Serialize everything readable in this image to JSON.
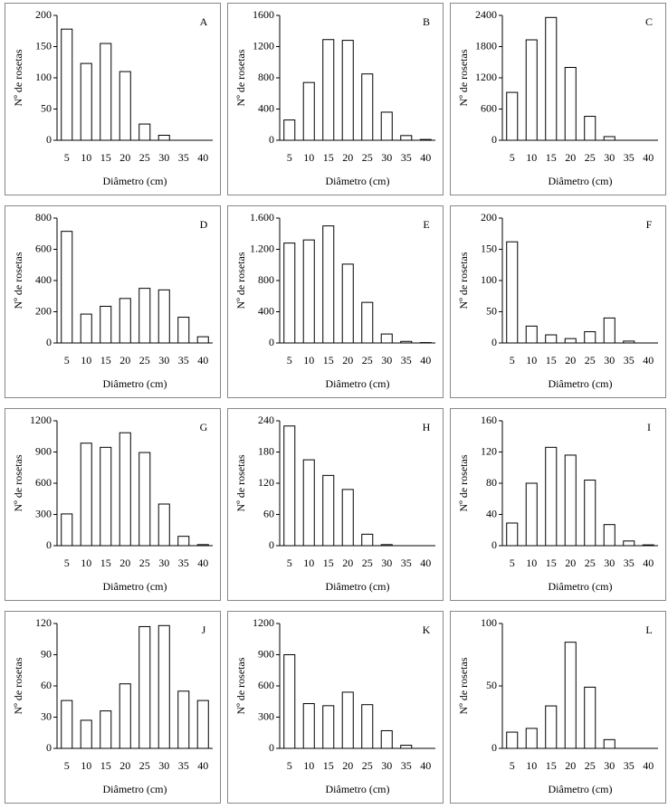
{
  "chart_data": [
    {
      "type": "bar",
      "title": "A",
      "xlabel": "Diâmetro (cm)",
      "ylabel": "Nº de rosetas",
      "color": "#ffffff",
      "categories": [
        "5",
        "10",
        "15",
        "20",
        "25",
        "30",
        "35",
        "40"
      ],
      "values": [
        178,
        123,
        155,
        110,
        26,
        8,
        0,
        0
      ],
      "ylim": [
        0,
        200
      ],
      "yticks": [
        0,
        50,
        100,
        150,
        200
      ]
    },
    {
      "type": "bar",
      "title": "B",
      "xlabel": "Diâmetro (cm)",
      "ylabel": "Nº de rosetas",
      "color": "#ffffff",
      "categories": [
        "5",
        "10",
        "15",
        "20",
        "25",
        "30",
        "35",
        "40"
      ],
      "values": [
        260,
        740,
        1290,
        1280,
        850,
        360,
        60,
        10
      ],
      "ylim": [
        0,
        1600
      ],
      "yticks": [
        0,
        400,
        800,
        1200,
        1600
      ]
    },
    {
      "type": "bar",
      "title": "C",
      "xlabel": "Diâmetro (cm)",
      "ylabel": "Nº de rosetas",
      "color": "#ffffff",
      "categories": [
        "5",
        "10",
        "15",
        "20",
        "25",
        "30",
        "35",
        "40"
      ],
      "values": [
        920,
        1930,
        2360,
        1400,
        460,
        70,
        0,
        0
      ],
      "ylim": [
        0,
        2400
      ],
      "yticks": [
        0,
        600,
        1200,
        1800,
        2400
      ]
    },
    {
      "type": "bar",
      "title": "D",
      "xlabel": "Diâmetro (cm)",
      "ylabel": "Nº de rosetas",
      "color": "#ffffff",
      "categories": [
        "5",
        "10",
        "15",
        "20",
        "25",
        "30",
        "35",
        "40"
      ],
      "values": [
        715,
        185,
        235,
        285,
        350,
        340,
        165,
        40
      ],
      "ylim": [
        0,
        800
      ],
      "yticks": [
        0,
        200,
        400,
        600,
        800
      ]
    },
    {
      "type": "bar",
      "title": "E",
      "xlabel": "Diâmetro (cm)",
      "ylabel": "Nº de rosetas",
      "color": "#ffffff",
      "categories": [
        "5",
        "10",
        "15",
        "20",
        "25",
        "30",
        "35",
        "40"
      ],
      "values": [
        1280,
        1320,
        1500,
        1010,
        520,
        115,
        20,
        5
      ],
      "ylim": [
        0,
        1600
      ],
      "yticks": [
        0,
        400,
        800,
        {
          "value": 1200,
          "label": "1.200"
        },
        {
          "value": 1600,
          "label": "1.600"
        }
      ]
    },
    {
      "type": "bar",
      "title": "F",
      "xlabel": "Diâmetro (cm)",
      "ylabel": "Nº de rosetas",
      "color": "#ffffff",
      "categories": [
        "5",
        "10",
        "15",
        "20",
        "25",
        "30",
        "35",
        "40"
      ],
      "values": [
        162,
        27,
        13,
        7,
        18,
        40,
        3,
        0
      ],
      "ylim": [
        0,
        200
      ],
      "yticks": [
        0,
        50,
        100,
        150,
        200
      ]
    },
    {
      "type": "bar",
      "title": "G",
      "xlabel": "Diâmetro (cm)",
      "ylabel": "Nº de rosetas",
      "color": "#ffffff",
      "categories": [
        "5",
        "10",
        "15",
        "20",
        "25",
        "30",
        "35",
        "40"
      ],
      "values": [
        305,
        985,
        945,
        1085,
        895,
        400,
        90,
        10
      ],
      "ylim": [
        0,
        1200
      ],
      "yticks": [
        0,
        300,
        600,
        900,
        1200
      ]
    },
    {
      "type": "bar",
      "title": "H",
      "xlabel": "Diâmetro (cm)",
      "ylabel": "Nº de rosetas",
      "color": "#ffffff",
      "categories": [
        "5",
        "10",
        "15",
        "20",
        "25",
        "30",
        "35",
        "40"
      ],
      "values": [
        230,
        165,
        135,
        108,
        22,
        2,
        0,
        0
      ],
      "ylim": [
        0,
        240
      ],
      "yticks": [
        0,
        60,
        120,
        180,
        240
      ]
    },
    {
      "type": "bar",
      "title": "I",
      "xlabel": "Diâmetro (cm)",
      "ylabel": "Nº de rosetas",
      "color": "#ffffff",
      "categories": [
        "5",
        "10",
        "15",
        "20",
        "25",
        "30",
        "35",
        "40"
      ],
      "values": [
        29,
        80,
        126,
        116,
        84,
        27,
        6,
        1
      ],
      "ylim": [
        0,
        160
      ],
      "yticks": [
        0,
        40,
        80,
        120,
        160
      ]
    },
    {
      "type": "bar",
      "title": "J",
      "xlabel": "Diâmetro (cm)",
      "ylabel": "Nº de rosetas",
      "color": "#ffffff",
      "categories": [
        "5",
        "10",
        "15",
        "20",
        "25",
        "30",
        "35",
        "40"
      ],
      "values": [
        46,
        27,
        36,
        62,
        117,
        118,
        55,
        46
      ],
      "ylim": [
        0,
        120
      ],
      "yticks": [
        0,
        30,
        60,
        90,
        120
      ]
    },
    {
      "type": "bar",
      "title": "K",
      "xlabel": "Diâmetro (cm)",
      "ylabel": "Nº de rosetas",
      "color": "#ffffff",
      "categories": [
        "5",
        "10",
        "15",
        "20",
        "25",
        "30",
        "35",
        "40"
      ],
      "values": [
        900,
        430,
        410,
        540,
        420,
        170,
        30,
        0
      ],
      "ylim": [
        0,
        1200
      ],
      "yticks": [
        0,
        300,
        600,
        900,
        1200
      ]
    },
    {
      "type": "bar",
      "title": "L",
      "xlabel": "Diâmetro (cm)",
      "ylabel": "Nº de rosetas",
      "color": "#ffffff",
      "categories": [
        "5",
        "10",
        "15",
        "20",
        "25",
        "30",
        "35",
        "40"
      ],
      "values": [
        13,
        16,
        34,
        85,
        49,
        7,
        0,
        0
      ],
      "ylim": [
        0,
        100
      ],
      "yticks": [
        0,
        50,
        100
      ]
    }
  ]
}
